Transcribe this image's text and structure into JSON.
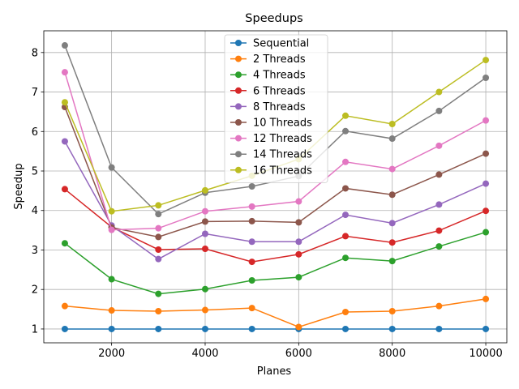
{
  "chart_data": {
    "type": "line",
    "title": "Speedups",
    "xlabel": "Planes",
    "ylabel": "Speedup",
    "xlim": [
      550,
      10450
    ],
    "ylim": [
      0.65,
      8.55
    ],
    "xticks": [
      2000,
      4000,
      6000,
      8000,
      10000
    ],
    "yticks": [
      1,
      2,
      3,
      4,
      5,
      6,
      7,
      8
    ],
    "grid": true,
    "legend_position": "upper-center",
    "x": [
      1000,
      2000,
      3000,
      4000,
      5000,
      6000,
      7000,
      8000,
      9000,
      10000
    ],
    "series": [
      {
        "name": "Sequential",
        "color": "#1f77b4",
        "values": [
          1,
          1,
          1,
          1,
          1,
          1,
          1,
          1,
          1,
          1
        ]
      },
      {
        "name": "2 Threads",
        "color": "#ff7f0e",
        "values": [
          1.58,
          1.47,
          1.45,
          1.48,
          1.53,
          1.05,
          1.43,
          1.45,
          1.58,
          1.76
        ]
      },
      {
        "name": "4 Threads",
        "color": "#2ca02c",
        "values": [
          3.17,
          2.26,
          1.89,
          2.01,
          2.23,
          2.31,
          2.8,
          2.72,
          3.09,
          3.45
        ]
      },
      {
        "name": "6 Threads",
        "color": "#d62728",
        "values": [
          4.54,
          3.58,
          3.01,
          3.03,
          2.7,
          2.89,
          3.35,
          3.19,
          3.49,
          3.99
        ]
      },
      {
        "name": "8 Threads",
        "color": "#9467bd",
        "values": [
          5.75,
          3.62,
          2.77,
          3.41,
          3.21,
          3.21,
          3.89,
          3.68,
          4.15,
          4.68
        ]
      },
      {
        "name": "10 Threads",
        "color": "#8c564b",
        "values": [
          6.62,
          3.57,
          3.33,
          3.72,
          3.73,
          3.7,
          4.56,
          4.4,
          4.91,
          5.44
        ]
      },
      {
        "name": "12 Threads",
        "color": "#e377c2",
        "values": [
          7.5,
          3.51,
          3.55,
          3.98,
          4.1,
          4.23,
          5.23,
          5.05,
          5.64,
          6.28
        ]
      },
      {
        "name": "14 Threads",
        "color": "#7f7f7f",
        "values": [
          8.18,
          5.09,
          3.91,
          4.45,
          4.61,
          4.87,
          6.01,
          5.82,
          6.52,
          7.36
        ]
      },
      {
        "name": "16 Threads",
        "color": "#bcbd22",
        "values": [
          6.74,
          3.98,
          4.13,
          4.51,
          4.88,
          5.3,
          6.4,
          6.19,
          7.0,
          7.81
        ]
      }
    ]
  }
}
